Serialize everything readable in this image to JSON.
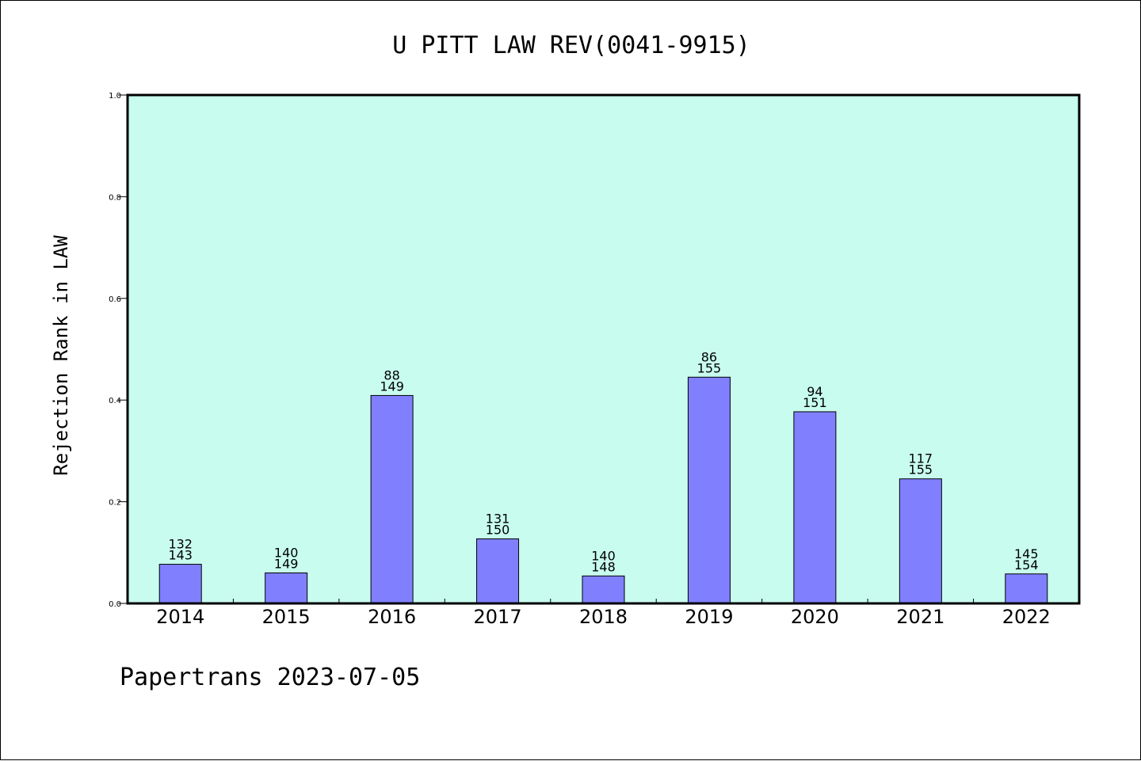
{
  "chart_data": {
    "type": "bar",
    "title": "U PITT LAW REV(0041-9915)",
    "xlabel": "",
    "ylabel": "Rejection Rank in LAW",
    "ylim": [
      0,
      1.0
    ],
    "yticks": [
      "0.0",
      "0.2",
      "0.4",
      "0.6",
      "0.8",
      "1.0"
    ],
    "ytick_values": [
      0,
      0.2,
      0.4,
      0.6,
      0.8,
      1.0
    ],
    "categories": [
      "2014",
      "2015",
      "2016",
      "2017",
      "2018",
      "2019",
      "2020",
      "2021",
      "2022"
    ],
    "values": [
      0.077,
      0.06,
      0.409,
      0.127,
      0.054,
      0.445,
      0.377,
      0.245,
      0.058
    ],
    "rank_labels": [
      "132",
      "140",
      "88",
      "131",
      "140",
      "86",
      "94",
      "117",
      "145"
    ],
    "total_labels": [
      "143",
      "149",
      "149",
      "150",
      "148",
      "155",
      "151",
      "155",
      "154"
    ],
    "grid": false,
    "colors": {
      "plot_background": "#c8fcee",
      "bar_fill": "#8080ff",
      "bar_stroke": "#000000"
    }
  },
  "footer": "Papertrans 2023-07-05"
}
